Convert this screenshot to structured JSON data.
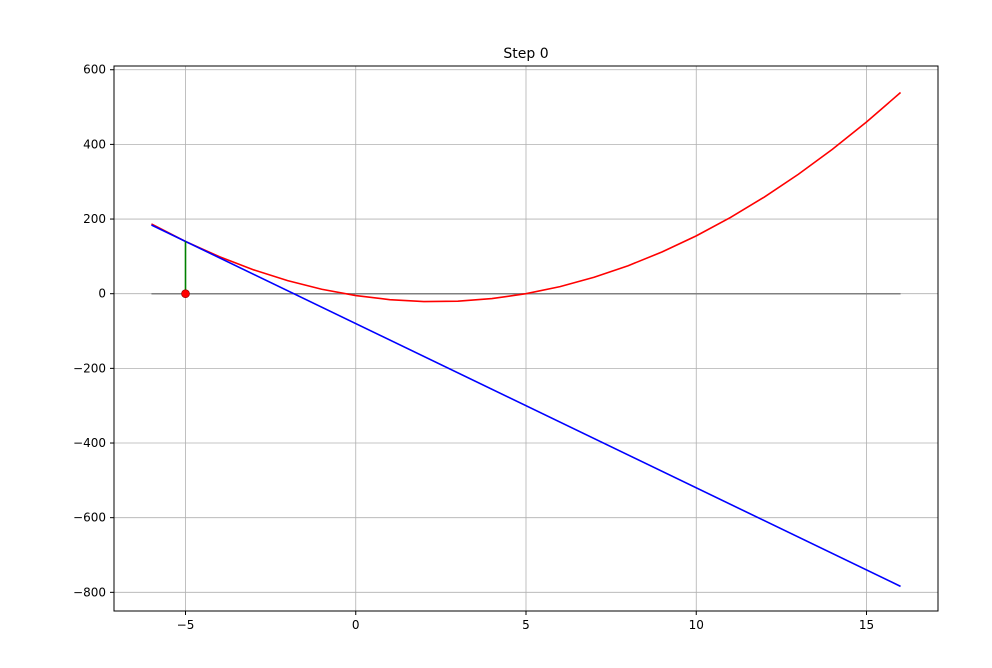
{
  "chart_data": {
    "type": "line",
    "title": "Step 0",
    "xlabel": "",
    "ylabel": "",
    "xlim": [
      -7.1,
      17.1
    ],
    "ylim": [
      -850,
      610
    ],
    "grid": true,
    "xticks": [
      -5,
      0,
      5,
      10,
      15
    ],
    "xtick_labels": [
      "−5",
      "0",
      "5",
      "10",
      "15"
    ],
    "yticks": [
      600,
      400,
      200,
      0,
      -200,
      -400,
      -600,
      -800
    ],
    "ytick_labels": [
      "600",
      "400",
      "200",
      "0",
      "−200",
      "−400",
      "−600",
      "−800"
    ],
    "series": [
      {
        "kind": "function",
        "color": "#ff0000",
        "x": [
          -6,
          -5,
          -4,
          -3,
          -2,
          -1,
          0,
          1,
          2,
          3,
          4,
          5,
          6,
          7,
          8,
          9,
          10,
          11,
          12,
          13,
          14,
          15,
          16
        ],
        "values": [
          187,
          140,
          99,
          64,
          35,
          12,
          -5,
          -16,
          -21,
          -20,
          -13,
          0,
          19,
          44,
          75,
          112,
          155,
          204,
          259,
          320,
          387,
          460,
          539
        ]
      },
      {
        "kind": "tangent",
        "color": "#0000ff",
        "x": [
          -6,
          16
        ],
        "values": [
          184,
          -784
        ]
      },
      {
        "kind": "x-axis",
        "color": "#808080",
        "x": [
          -6,
          16
        ],
        "values": [
          0,
          0
        ]
      },
      {
        "kind": "step",
        "color": "#008000",
        "x": [
          -5,
          -5
        ],
        "values": [
          0,
          140
        ]
      }
    ],
    "point": {
      "x": -5,
      "y": 0,
      "color": "#ff0000"
    }
  }
}
